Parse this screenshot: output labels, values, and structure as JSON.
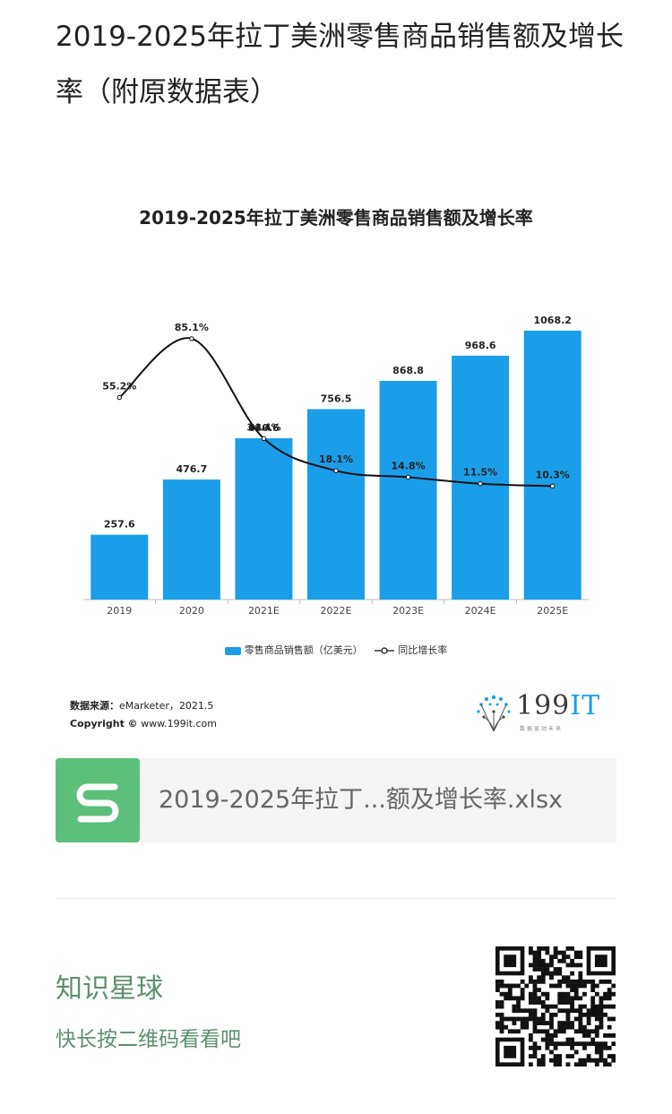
{
  "article": {
    "title": "2019-2025年拉丁美洲零售商品销售额及增长率（附原数据表）"
  },
  "chart_data": {
    "type": "bar",
    "title": "2019-2025年拉丁美洲零售商品销售额及增长率",
    "categories": [
      "2019",
      "2020",
      "2021E",
      "2022E",
      "2023E",
      "2024E",
      "2025E"
    ],
    "series": [
      {
        "name": "零售商品销售额（亿美元）",
        "type": "bar",
        "values": [
          257.6,
          476.7,
          640.6,
          756.5,
          868.8,
          968.6,
          1068.2
        ]
      },
      {
        "name": "同比增长率",
        "type": "line",
        "values": [
          55.2,
          85.1,
          34.4,
          18.1,
          14.8,
          11.5,
          10.3
        ]
      }
    ],
    "bar_labels": [
      "257.6",
      "476.7",
      "640.6",
      "756.5",
      "868.8",
      "968.6",
      "1068.2"
    ],
    "line_labels": [
      "55.2%",
      "85.1%",
      "34.4%",
      "18.1%",
      "14.8%",
      "11.5%",
      "10.3%"
    ],
    "ylim": [
      0,
      1100
    ],
    "ylim_line": [
      0,
      100
    ],
    "legend_position": "bottom",
    "grid": false,
    "colors": {
      "bar": "#1a9ee8",
      "line": "#111111"
    }
  },
  "legend": {
    "bar_label": "零售商品销售额（亿美元）",
    "line_label": "同比增长率"
  },
  "source": {
    "label": "数据来源：",
    "text": "eMarketer，2021.5",
    "copyright_label": "Copyright ©",
    "copyright_text": "www.199it.com"
  },
  "brand": {
    "name_num": "199",
    "name_it": "IT",
    "tagline": "数据驱动未来"
  },
  "attachment": {
    "icon": "wps-sheet-icon",
    "filename": "2019-2025年拉丁...额及增长率.xlsx"
  },
  "planet": {
    "title": "知识星球",
    "subtitle": "快长按二维码看看吧"
  }
}
